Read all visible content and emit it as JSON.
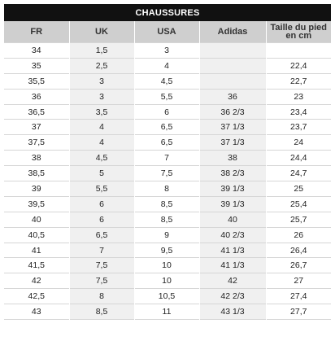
{
  "table": {
    "title": "CHAUSSURES",
    "headers": [
      "FR",
      "UK",
      "USA",
      "Adidas",
      "Taille du pied en cm"
    ],
    "rows": [
      [
        "34",
        "1,5",
        "3",
        "",
        ""
      ],
      [
        "35",
        "2,5",
        "4",
        "",
        "22,4"
      ],
      [
        "35,5",
        "3",
        "4,5",
        "",
        "22,7"
      ],
      [
        "36",
        "3",
        "5,5",
        "36",
        "23"
      ],
      [
        "36,5",
        "3,5",
        "6",
        "36 2/3",
        "23,4"
      ],
      [
        "37",
        "4",
        "6,5",
        "37 1/3",
        "23,7"
      ],
      [
        "37,5",
        "4",
        "6,5",
        "37 1/3",
        "24"
      ],
      [
        "38",
        "4,5",
        "7",
        "38",
        "24,4"
      ],
      [
        "38,5",
        "5",
        "7,5",
        "38 2/3",
        "24,7"
      ],
      [
        "39",
        "5,5",
        "8",
        "39 1/3",
        "25"
      ],
      [
        "39,5",
        "6",
        "8,5",
        "39 1/3",
        "25,4"
      ],
      [
        "40",
        "6",
        "8,5",
        "40",
        "25,7"
      ],
      [
        "40,5",
        "6,5",
        "9",
        "40 2/3",
        "26"
      ],
      [
        "41",
        "7",
        "9,5",
        "41 1/3",
        "26,4"
      ],
      [
        "41,5",
        "7,5",
        "10",
        "41 1/3",
        "26,7"
      ],
      [
        "42",
        "7,5",
        "10",
        "42",
        "27"
      ],
      [
        "42,5",
        "8",
        "10,5",
        "42 2/3",
        "27,4"
      ],
      [
        "43",
        "8,5",
        "11",
        "43 1/3",
        "27,7"
      ]
    ]
  },
  "colors": {
    "title_bg": "#111111",
    "header_bg": "#cfcfcf",
    "shaded_column_bg": "#f0f0f0"
  }
}
